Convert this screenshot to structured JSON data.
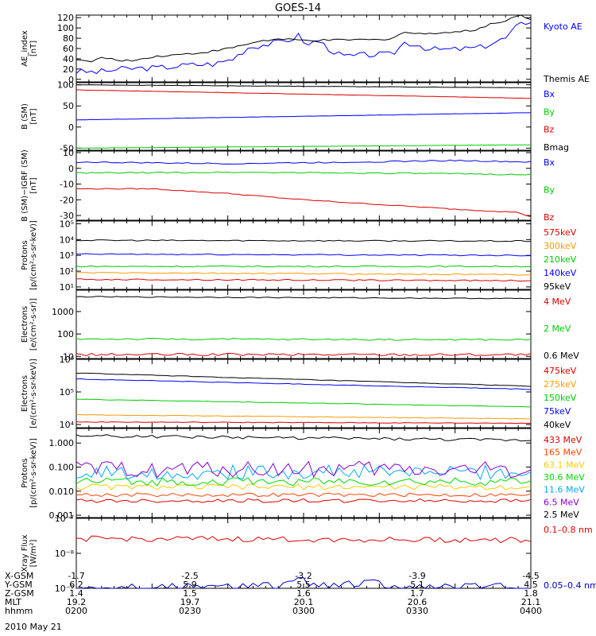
{
  "title": "GOES-14",
  "date": "2010 May 21",
  "ephemeris_rows": [
    {
      "label": "X-GSM",
      "values": [
        "-1.7",
        "-2.5",
        "-3.2",
        "-3.9",
        "-4.5"
      ]
    },
    {
      "label": "Y-GSM",
      "values": [
        "6.2",
        "5.9",
        "5.5",
        "5.1",
        "4.5"
      ]
    },
    {
      "label": "Z-GSM",
      "values": [
        "1.4",
        "1.5",
        "1.6",
        "1.7",
        "1.8"
      ]
    },
    {
      "label": "MLT",
      "values": [
        "19.2",
        "19.7",
        "20.1",
        "20.6",
        "21.1"
      ]
    },
    {
      "label": "hhmm",
      "values": [
        "0200",
        "0230",
        "0300",
        "0330",
        "0400"
      ]
    }
  ],
  "chart_data": [
    {
      "type": "line",
      "ylabel": [
        "AE_index",
        "[nT]"
      ],
      "yscale": "linear",
      "ylim": [
        -5,
        125
      ],
      "ticks": [
        0,
        20,
        40,
        60,
        80,
        100,
        120
      ],
      "series": [
        {
          "name": "Kyoto AE",
          "color": "#0000ff",
          "noise": 6,
          "values": [
            [
              0,
              15
            ],
            [
              8,
              14
            ],
            [
              18,
              20
            ],
            [
              28,
              22
            ],
            [
              32,
              22
            ],
            [
              45,
              28
            ],
            [
              55,
              30
            ],
            [
              62,
              40
            ],
            [
              68,
              62
            ],
            [
              75,
              68
            ],
            [
              80,
              72
            ],
            [
              85,
              78
            ],
            [
              88,
              85
            ],
            [
              92,
              65
            ],
            [
              95,
              78
            ],
            [
              100,
              60
            ],
            [
              105,
              45
            ],
            [
              110,
              45
            ],
            [
              115,
              48
            ],
            [
              125,
              48
            ],
            [
              130,
              72
            ],
            [
              135,
              68
            ],
            [
              140,
              58
            ],
            [
              150,
              58
            ],
            [
              160,
              62
            ],
            [
              170,
              80
            ],
            [
              175,
              105
            ],
            [
              180,
              115
            ]
          ]
        },
        {
          "name": "Themis AE",
          "color": "#000000",
          "noise": 2,
          "values": [
            [
              0,
              40
            ],
            [
              5,
              33
            ],
            [
              10,
              42
            ],
            [
              15,
              38
            ],
            [
              22,
              36
            ],
            [
              30,
              44
            ],
            [
              40,
              48
            ],
            [
              50,
              52
            ],
            [
              58,
              58
            ],
            [
              65,
              65
            ],
            [
              72,
              74
            ],
            [
              80,
              78
            ],
            [
              90,
              76
            ],
            [
              100,
              76
            ],
            [
              110,
              77
            ],
            [
              120,
              77
            ],
            [
              125,
              80
            ],
            [
              130,
              92
            ],
            [
              135,
              88
            ],
            [
              140,
              90
            ],
            [
              150,
              92
            ],
            [
              158,
              96
            ],
            [
              164,
              108
            ],
            [
              168,
              110
            ],
            [
              172,
              120
            ],
            [
              176,
              124
            ],
            [
              180,
              118
            ]
          ]
        }
      ]
    },
    {
      "type": "line",
      "ylabel": [
        "B (SM)",
        "[nT]"
      ],
      "yscale": "linear",
      "ylim": [
        -55,
        105
      ],
      "ticks": [
        -50,
        0,
        50,
        100
      ],
      "series": [
        {
          "name": "Bx",
          "color": "#0000ff",
          "noise": 0.4,
          "values": [
            [
              0,
              17
            ],
            [
              180,
              34
            ]
          ]
        },
        {
          "name": "By",
          "color": "#00cc00",
          "noise": 0.3,
          "values": [
            [
              0,
              -50
            ],
            [
              180,
              -42
            ]
          ]
        },
        {
          "name": "Bz",
          "color": "#dd0000",
          "noise": 0.4,
          "values": [
            [
              0,
              88
            ],
            [
              180,
              68
            ]
          ]
        },
        {
          "name": "Bmag",
          "color": "#000000",
          "noise": 0.4,
          "values": [
            [
              0,
              100
            ],
            [
              180,
              93
            ]
          ]
        }
      ]
    },
    {
      "type": "line",
      "ylabel": [
        "B (SM)−IGRF (SM)",
        "[nT]"
      ],
      "yscale": "linear",
      "ylim": [
        -33,
        11
      ],
      "ticks": [
        -30,
        -20,
        -10,
        0,
        10
      ],
      "series": [
        {
          "name": "Bx",
          "color": "#0000ff",
          "noise": 0.4,
          "values": [
            [
              0,
              4
            ],
            [
              60,
              3
            ],
            [
              110,
              4
            ],
            [
              150,
              5
            ],
            [
              180,
              4
            ]
          ]
        },
        {
          "name": "By",
          "color": "#00cc00",
          "noise": 0.4,
          "values": [
            [
              0,
              -3
            ],
            [
              60,
              -2.5
            ],
            [
              120,
              -3
            ],
            [
              180,
              -4
            ]
          ]
        },
        {
          "name": "Bz",
          "color": "#dd0000",
          "noise": 0.3,
          "values": [
            [
              0,
              -13
            ],
            [
              30,
              -13
            ],
            [
              60,
              -16
            ],
            [
              90,
              -20
            ],
            [
              120,
              -23
            ],
            [
              150,
              -26
            ],
            [
              175,
              -28
            ],
            [
              180,
              -31
            ]
          ]
        }
      ]
    },
    {
      "type": "line",
      "ylabel": [
        "Protons",
        "[p/(cm²-s-sr-keV)]"
      ],
      "yscale": "log",
      "ylim": [
        7,
        150000
      ],
      "ticks": [
        {
          "v": 10,
          "t": "10¹"
        },
        {
          "v": 100,
          "t": "10²"
        },
        {
          "v": 1000,
          "t": "10³"
        },
        {
          "v": 10000,
          "t": "10⁴"
        },
        {
          "v": 100000,
          "t": "10⁵"
        }
      ],
      "series": [
        {
          "name": "575keV",
          "color": "#dd0000",
          "noise": 0.04,
          "values": [
            [
              0,
              30
            ],
            [
              180,
              25
            ]
          ]
        },
        {
          "name": "300keV",
          "color": "#ff9900",
          "noise": 0.04,
          "values": [
            [
              0,
              80
            ],
            [
              180,
              60
            ]
          ]
        },
        {
          "name": "210keV",
          "color": "#00cc00",
          "noise": 0.04,
          "values": [
            [
              0,
              200
            ],
            [
              180,
              200
            ]
          ]
        },
        {
          "name": "140keV",
          "color": "#0000ff",
          "noise": 0.04,
          "values": [
            [
              0,
              1200
            ],
            [
              180,
              1000
            ]
          ]
        },
        {
          "name": "95keV",
          "color": "#000000",
          "noise": 0.04,
          "values": [
            [
              0,
              9000
            ],
            [
              180,
              8000
            ]
          ]
        }
      ]
    },
    {
      "type": "line",
      "ylabel": [
        "Electrons",
        "[e/(cm²-s-sr)]"
      ],
      "yscale": "log",
      "ylim": [
        8,
        9000
      ],
      "ticks": [
        {
          "v": 10,
          "t": "10"
        },
        {
          "v": 100,
          "t": "100"
        },
        {
          "v": 1000,
          "t": "1000"
        }
      ],
      "series": [
        {
          "name": "4 MeV",
          "color": "#dd0000",
          "noise": 0.06,
          "values": [
            [
              0,
              12
            ],
            [
              180,
              12
            ]
          ]
        },
        {
          "name": "2 MeV",
          "color": "#00cc00",
          "noise": 0.04,
          "values": [
            [
              0,
              60
            ],
            [
              180,
              55
            ]
          ]
        },
        {
          "name": "0.6 MeV",
          "color": "#000000",
          "noise": 0.02,
          "values": [
            [
              0,
              4600
            ],
            [
              180,
              3800
            ]
          ]
        }
      ]
    },
    {
      "type": "line",
      "ylabel": [
        "Electrons",
        "[e/(cm²-s-sr-keV)]"
      ],
      "yscale": "log",
      "ylim": [
        8000,
        1000000
      ],
      "ticks": [
        {
          "v": 10000,
          "t": "10⁴"
        },
        {
          "v": 100000,
          "t": "10⁵"
        },
        {
          "v": 1000000,
          "t": "10⁶"
        }
      ],
      "series": [
        {
          "name": "475keV",
          "color": "#dd0000",
          "noise": 0.01,
          "values": [
            [
              0,
              12000
            ],
            [
              180,
              11000
            ]
          ]
        },
        {
          "name": "275keV",
          "color": "#ff9900",
          "noise": 0.01,
          "values": [
            [
              0,
              20000
            ],
            [
              180,
              15000
            ]
          ]
        },
        {
          "name": "150keV",
          "color": "#00cc00",
          "noise": 0.01,
          "values": [
            [
              0,
              60000
            ],
            [
              180,
              35000
            ]
          ]
        },
        {
          "name": "75keV",
          "color": "#0000ff",
          "noise": 0.01,
          "values": [
            [
              0,
              250000
            ],
            [
              180,
              120000
            ]
          ]
        },
        {
          "name": "40keV",
          "color": "#000000",
          "noise": 0.01,
          "values": [
            [
              0,
              380000
            ],
            [
              180,
              150000
            ]
          ]
        }
      ]
    },
    {
      "type": "line",
      "ylabel": [
        "Protons",
        "[p/(cm²-s-sr-keV)]"
      ],
      "yscale": "log",
      "ylim": [
        0.0008,
        4
      ],
      "ticks": [
        {
          "v": 0.001,
          "t": "0.001"
        },
        {
          "v": 0.01,
          "t": "0.010"
        },
        {
          "v": 0.1,
          "t": "0.100"
        },
        {
          "v": 1,
          "t": "1.000"
        }
      ],
      "series": [
        {
          "name": "433 MeV",
          "color": "#dd0000",
          "noise": 0.08,
          "values": [
            [
              0,
              0.004
            ],
            [
              180,
              0.004
            ]
          ]
        },
        {
          "name": "165 MeV",
          "color": "#ff4400",
          "noise": 0.08,
          "values": [
            [
              0,
              0.007
            ],
            [
              180,
              0.007
            ]
          ]
        },
        {
          "name": "63.1 MeV",
          "color": "#ffcc00",
          "noise": 0.12,
          "values": [
            [
              0,
              0.015
            ],
            [
              180,
              0.015
            ]
          ]
        },
        {
          "name": "30.6 MeV",
          "color": "#00dd00",
          "noise": 0.18,
          "values": [
            [
              0,
              0.025
            ],
            [
              180,
              0.025
            ]
          ]
        },
        {
          "name": "11.6 MeV",
          "color": "#00aaff",
          "noise": 0.3,
          "values": [
            [
              0,
              0.06
            ],
            [
              180,
              0.06
            ]
          ]
        },
        {
          "name": "6.5 MeV",
          "color": "#8800cc",
          "noise": 0.35,
          "values": [
            [
              0,
              0.08
            ],
            [
              180,
              0.08
            ]
          ]
        },
        {
          "name": "2.5 MeV",
          "color": "#000000",
          "noise": 0.06,
          "values": [
            [
              0,
              2.0
            ],
            [
              180,
              1.3
            ]
          ]
        }
      ]
    },
    {
      "type": "line",
      "ylabel": [
        "Xray Flux",
        "[W/m²]"
      ],
      "yscale": "log",
      "ylim": [
        1e-09,
        1e-07
      ],
      "ticks": [
        {
          "v": 1e-09,
          "t": "10⁻⁹"
        },
        {
          "v": 1e-08,
          "t": "10⁻⁸"
        },
        {
          "v": 1e-07,
          "t": "10⁻⁷"
        }
      ],
      "series": [
        {
          "name": "0.1–0.8 nm",
          "color": "#dd0000",
          "noise": 0.08,
          "values": [
            [
              0,
              2.6e-08
            ],
            [
              180,
              2.4e-08
            ]
          ]
        },
        {
          "name": "0.05–0.4 nm",
          "color": "#0000cc",
          "noise": 0.15,
          "values": [
            [
              0,
              1e-09
            ],
            [
              60,
              1e-09
            ],
            [
              70,
              1.5e-09
            ],
            [
              80,
              1e-09
            ],
            [
              90,
              1.6e-09
            ],
            [
              100,
              1e-09
            ],
            [
              115,
              1.4e-09
            ],
            [
              125,
              1e-09
            ],
            [
              180,
              1e-09
            ]
          ]
        }
      ]
    }
  ]
}
